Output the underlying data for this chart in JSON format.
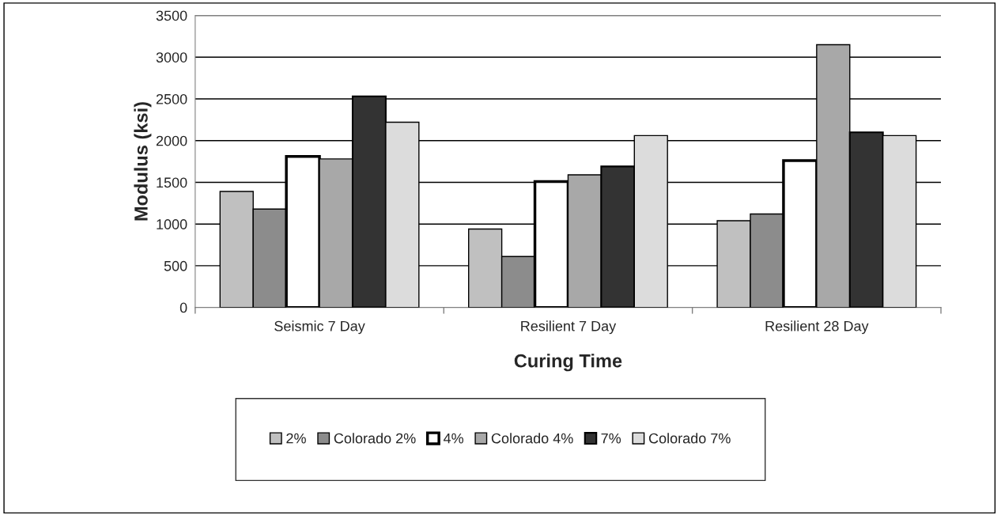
{
  "chart_data": {
    "type": "bar",
    "xlabel": "Curing Time",
    "ylabel": "Modulus (ksi)",
    "categories": [
      "Seismic 7 Day",
      "Resilient 7 Day",
      "Resilient 28 Day"
    ],
    "series": [
      {
        "name": "2%",
        "color": "#c0c0c0",
        "values": [
          1390,
          940,
          1040
        ]
      },
      {
        "name": "Colorado 2%",
        "color": "#8c8c8c",
        "values": [
          1180,
          610,
          1120
        ]
      },
      {
        "name": "4%",
        "color": "#ffffff",
        "values": [
          1810,
          1510,
          1760
        ]
      },
      {
        "name": "Colorado 4%",
        "color": "#a8a8a8",
        "values": [
          1780,
          1590,
          3150
        ]
      },
      {
        "name": "7%",
        "color": "#333333",
        "values": [
          2530,
          1690,
          2100
        ]
      },
      {
        "name": "Colorado 7%",
        "color": "#dcdcdc",
        "values": [
          2220,
          2060,
          2060
        ]
      }
    ],
    "ylim": [
      0,
      3500
    ],
    "yticks": [
      0,
      500,
      1000,
      1500,
      2000,
      2500,
      3000,
      3500
    ],
    "grid": "y",
    "legend": "bottom"
  }
}
